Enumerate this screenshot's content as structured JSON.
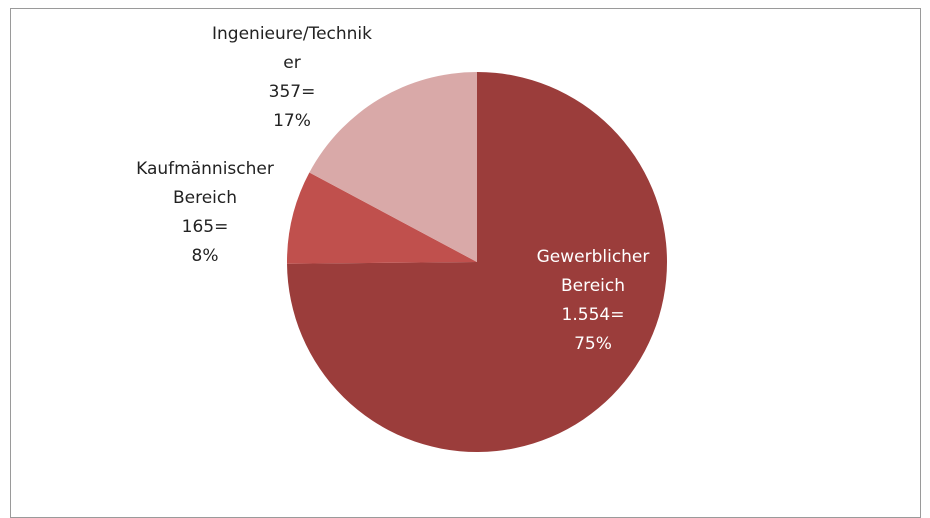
{
  "chart_data": {
    "type": "pie",
    "categories": [
      "Gewerblicher Bereich",
      "Kaufmännischer Bereich",
      "Ingenieure/Techniker"
    ],
    "values": [
      1554,
      165,
      357
    ],
    "value_labels": [
      "1.554=",
      "165=",
      "357="
    ],
    "percentages": [
      75,
      8,
      17
    ],
    "percentage_labels": [
      "75%",
      "8%",
      "17%"
    ],
    "colors": [
      "#9b3d3b",
      "#c0504d",
      "#d9a9a8"
    ],
    "label_colors": [
      "#ffffff",
      "#222222",
      "#222222"
    ]
  }
}
